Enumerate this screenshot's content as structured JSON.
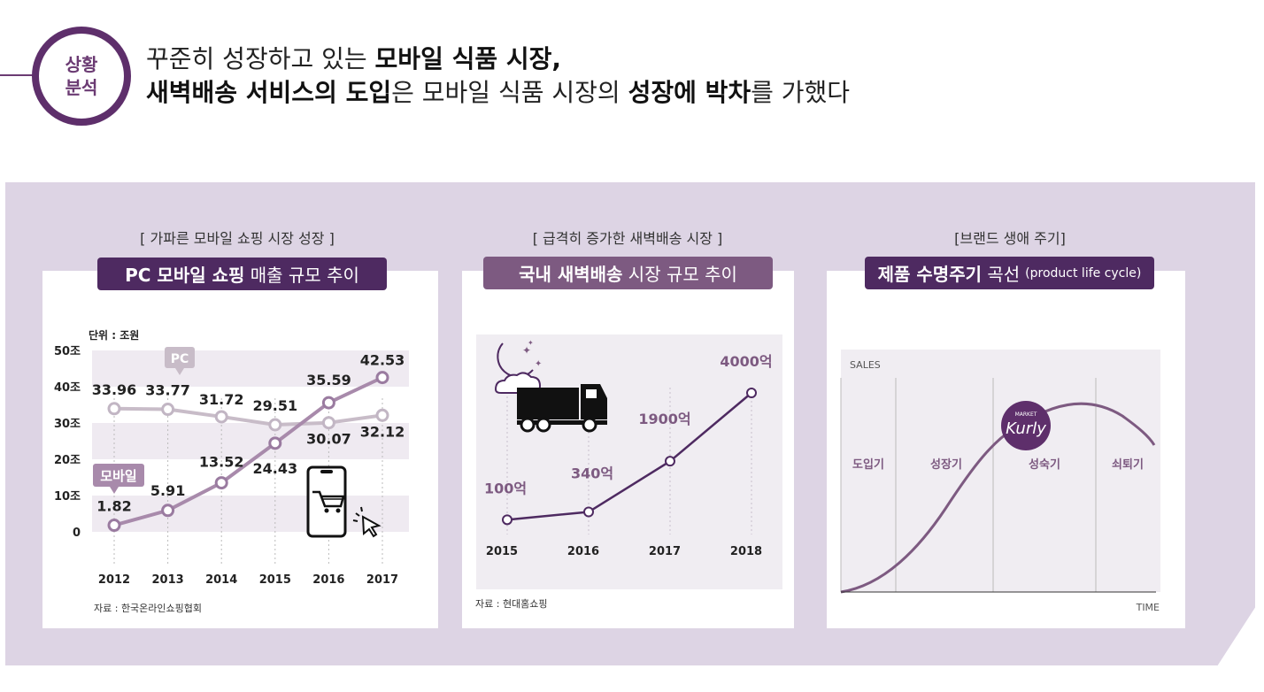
{
  "header": {
    "badge_line1": "상황",
    "badge_line2": "분석",
    "line1_plain": "꾸준히 성장하고 있는 ",
    "line1_bold": "모바일 식품 시장,",
    "line2_bold1": "새벽배송 서비스의 도입",
    "line2_plain1": "은 모바일 식품 시장의 ",
    "line2_bold2": "성장에 박차",
    "line2_plain2": "를 가했다"
  },
  "colors": {
    "dark_purple": "#4e2a61",
    "mid_purple": "#7d5a81",
    "line_mobile": "#a88aab",
    "line_pc": "#c8bcc8",
    "band": "#ddd4e4"
  },
  "panels": {
    "left": {
      "caption": "[ 가파른 모바일 쇼핑 시장 성장 ]",
      "title_bold": "PC 모바일 쇼핑",
      "title_thin": " 매출 규모 추이",
      "source": "자료 : 한국온라인쇼핑협회"
    },
    "middle": {
      "caption": "[ 급격히 증가한 새벽배송 시장 ]",
      "title_bold": "국내 새벽배송",
      "title_thin": " 시장 규모 추이",
      "source": "자료 : 현대홈쇼핑"
    },
    "right": {
      "caption": "[브랜드 생애 주기]",
      "title_bold": "제품 수명주기",
      "title_thin": " 곡선",
      "title_small": "(product life cycle)"
    }
  },
  "chart_data": [
    {
      "type": "line",
      "title": "PC 모바일 쇼핑 매출 규모 추이",
      "unit_label": "단위 : 조원",
      "categories": [
        "2012",
        "2013",
        "2014",
        "2015",
        "2016",
        "2017"
      ],
      "ytick_labels": [
        "0",
        "10조",
        "20조",
        "30조",
        "40조",
        "50조"
      ],
      "ylim": [
        0,
        50
      ],
      "series": [
        {
          "name": "PC",
          "values": [
            33.96,
            33.77,
            31.72,
            29.51,
            30.07,
            32.12
          ],
          "labels": [
            "33.96",
            "33.77",
            "31.72",
            "29.51",
            "30.07",
            "32.12"
          ]
        },
        {
          "name": "모바일",
          "values": [
            1.82,
            5.91,
            13.52,
            24.43,
            35.59,
            42.53
          ],
          "labels": [
            "1.82",
            "5.91",
            "13.52",
            "24.43",
            "35.59",
            "42.53"
          ]
        }
      ]
    },
    {
      "type": "line",
      "title": "국내 새벽배송 시장 규모 추이",
      "categories": [
        "2015",
        "2016",
        "2017",
        "2018"
      ],
      "values": [
        100,
        340,
        1900,
        4000
      ],
      "labels": [
        "100억",
        "340억",
        "1900억",
        "4000억"
      ]
    },
    {
      "type": "line",
      "title": "제품 수명주기 곡선 (product life cycle)",
      "ylabel": "SALES",
      "xlabel": "TIME",
      "stages": [
        "도입기",
        "성장기",
        "성숙기",
        "쇠퇴기"
      ],
      "logo": {
        "top_text": "MARKET",
        "script_text": "Kurly"
      }
    }
  ]
}
